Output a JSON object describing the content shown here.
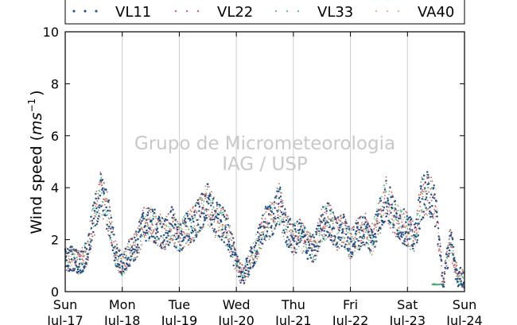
{
  "chart_data": {
    "type": "scatter",
    "title": "",
    "ylabel": "Wind speed (ms^-1)",
    "ylabel_main": "Wind speed (",
    "ylabel_unit": "ms",
    "ylabel_exp": "−1",
    "ylabel_close": ")",
    "ylim": [
      0,
      10
    ],
    "yticks": [
      "0",
      "2",
      "4",
      "6",
      "8",
      "10"
    ],
    "xlim": [
      "2016-07-17 00:00",
      "2016-07-24 00:00"
    ],
    "xticks": [
      {
        "day": "Sun",
        "date": "Jul-17"
      },
      {
        "day": "Mon",
        "date": "Jul-18"
      },
      {
        "day": "Tue",
        "date": "Jul-19"
      },
      {
        "day": "Wed",
        "date": "Jul-20"
      },
      {
        "day": "Thu",
        "date": "Jul-21"
      },
      {
        "day": "Fri",
        "date": "Jul-22"
      },
      {
        "day": "Sat",
        "date": "Jul-23"
      },
      {
        "day": "Sun",
        "date": "Jul-24"
      }
    ],
    "grid": "vertical",
    "legend_position": "top",
    "watermark": [
      "Grupo de Micrometeorologia",
      "IAG / USP"
    ],
    "series": [
      {
        "name": "VL11",
        "color": "#1f4e8c",
        "marker_size": 2.2
      },
      {
        "name": "VL22",
        "color": "#d0545a",
        "marker_size": 1.6
      },
      {
        "name": "VL33",
        "color": "#3aaa6e",
        "marker_size": 1.4
      },
      {
        "name": "VA40",
        "color": "#e8a070",
        "marker_size": 1.0
      }
    ],
    "trend_days_hours": [
      0,
      3,
      6,
      9,
      12,
      15,
      18,
      21
    ],
    "trend": [
      1.2,
      1.3,
      1.1,
      1.4,
      2.8,
      3.8,
      3.0,
      1.5,
      1.0,
      1.5,
      1.8,
      2.6,
      2.6,
      2.4,
      2.2,
      2.6,
      2.0,
      2.4,
      2.6,
      3.0,
      3.4,
      2.8,
      2.6,
      2.2,
      1.0,
      0.6,
      1.2,
      1.8,
      2.6,
      2.8,
      3.4,
      2.4,
      2.0,
      2.2,
      1.8,
      1.6,
      2.6,
      2.8,
      2.2,
      2.4,
      1.8,
      2.2,
      2.4,
      2.0,
      2.8,
      3.6,
      3.0,
      2.6,
      2.4,
      2.0,
      3.6,
      3.8,
      3.2,
      0.3,
      2.0,
      0.6,
      0.5
    ],
    "flat_segment": {
      "start_day": 6.43,
      "end_day": 6.64,
      "value": 0.28,
      "series": "VL33"
    }
  }
}
